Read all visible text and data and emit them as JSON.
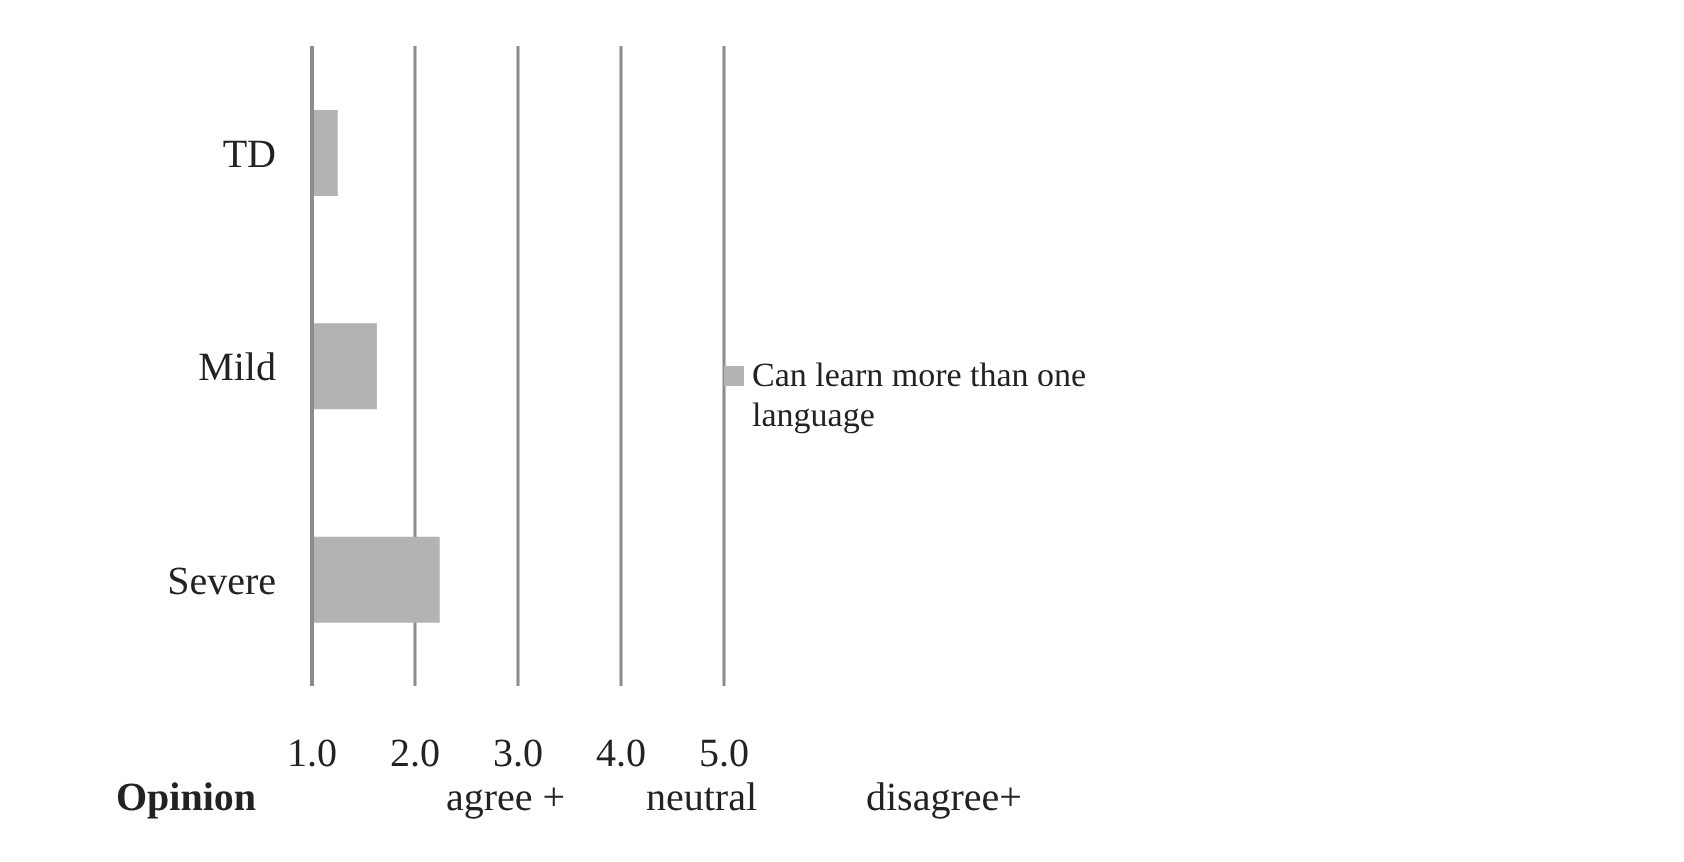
{
  "chart_data": {
    "type": "bar",
    "orientation": "horizontal",
    "categories": [
      "TD",
      "Mild",
      "Severe"
    ],
    "series": [
      {
        "name": "Can learn more than one language",
        "color": "#b3b3b3",
        "values": [
          1.25,
          1.63,
          2.24
        ]
      }
    ],
    "xlim": [
      1,
      5
    ],
    "xticks": [
      {
        "value": 1,
        "label": "1.0"
      },
      {
        "value": 2,
        "label": "2.0"
      },
      {
        "value": 3,
        "label": "3.0"
      },
      {
        "value": 4,
        "label": "4.0"
      },
      {
        "value": 5,
        "label": "5.0"
      }
    ],
    "grid": "x",
    "legend": "right",
    "annotations": [
      "Opinion",
      "agree +",
      "neutral",
      "disagree+"
    ]
  }
}
